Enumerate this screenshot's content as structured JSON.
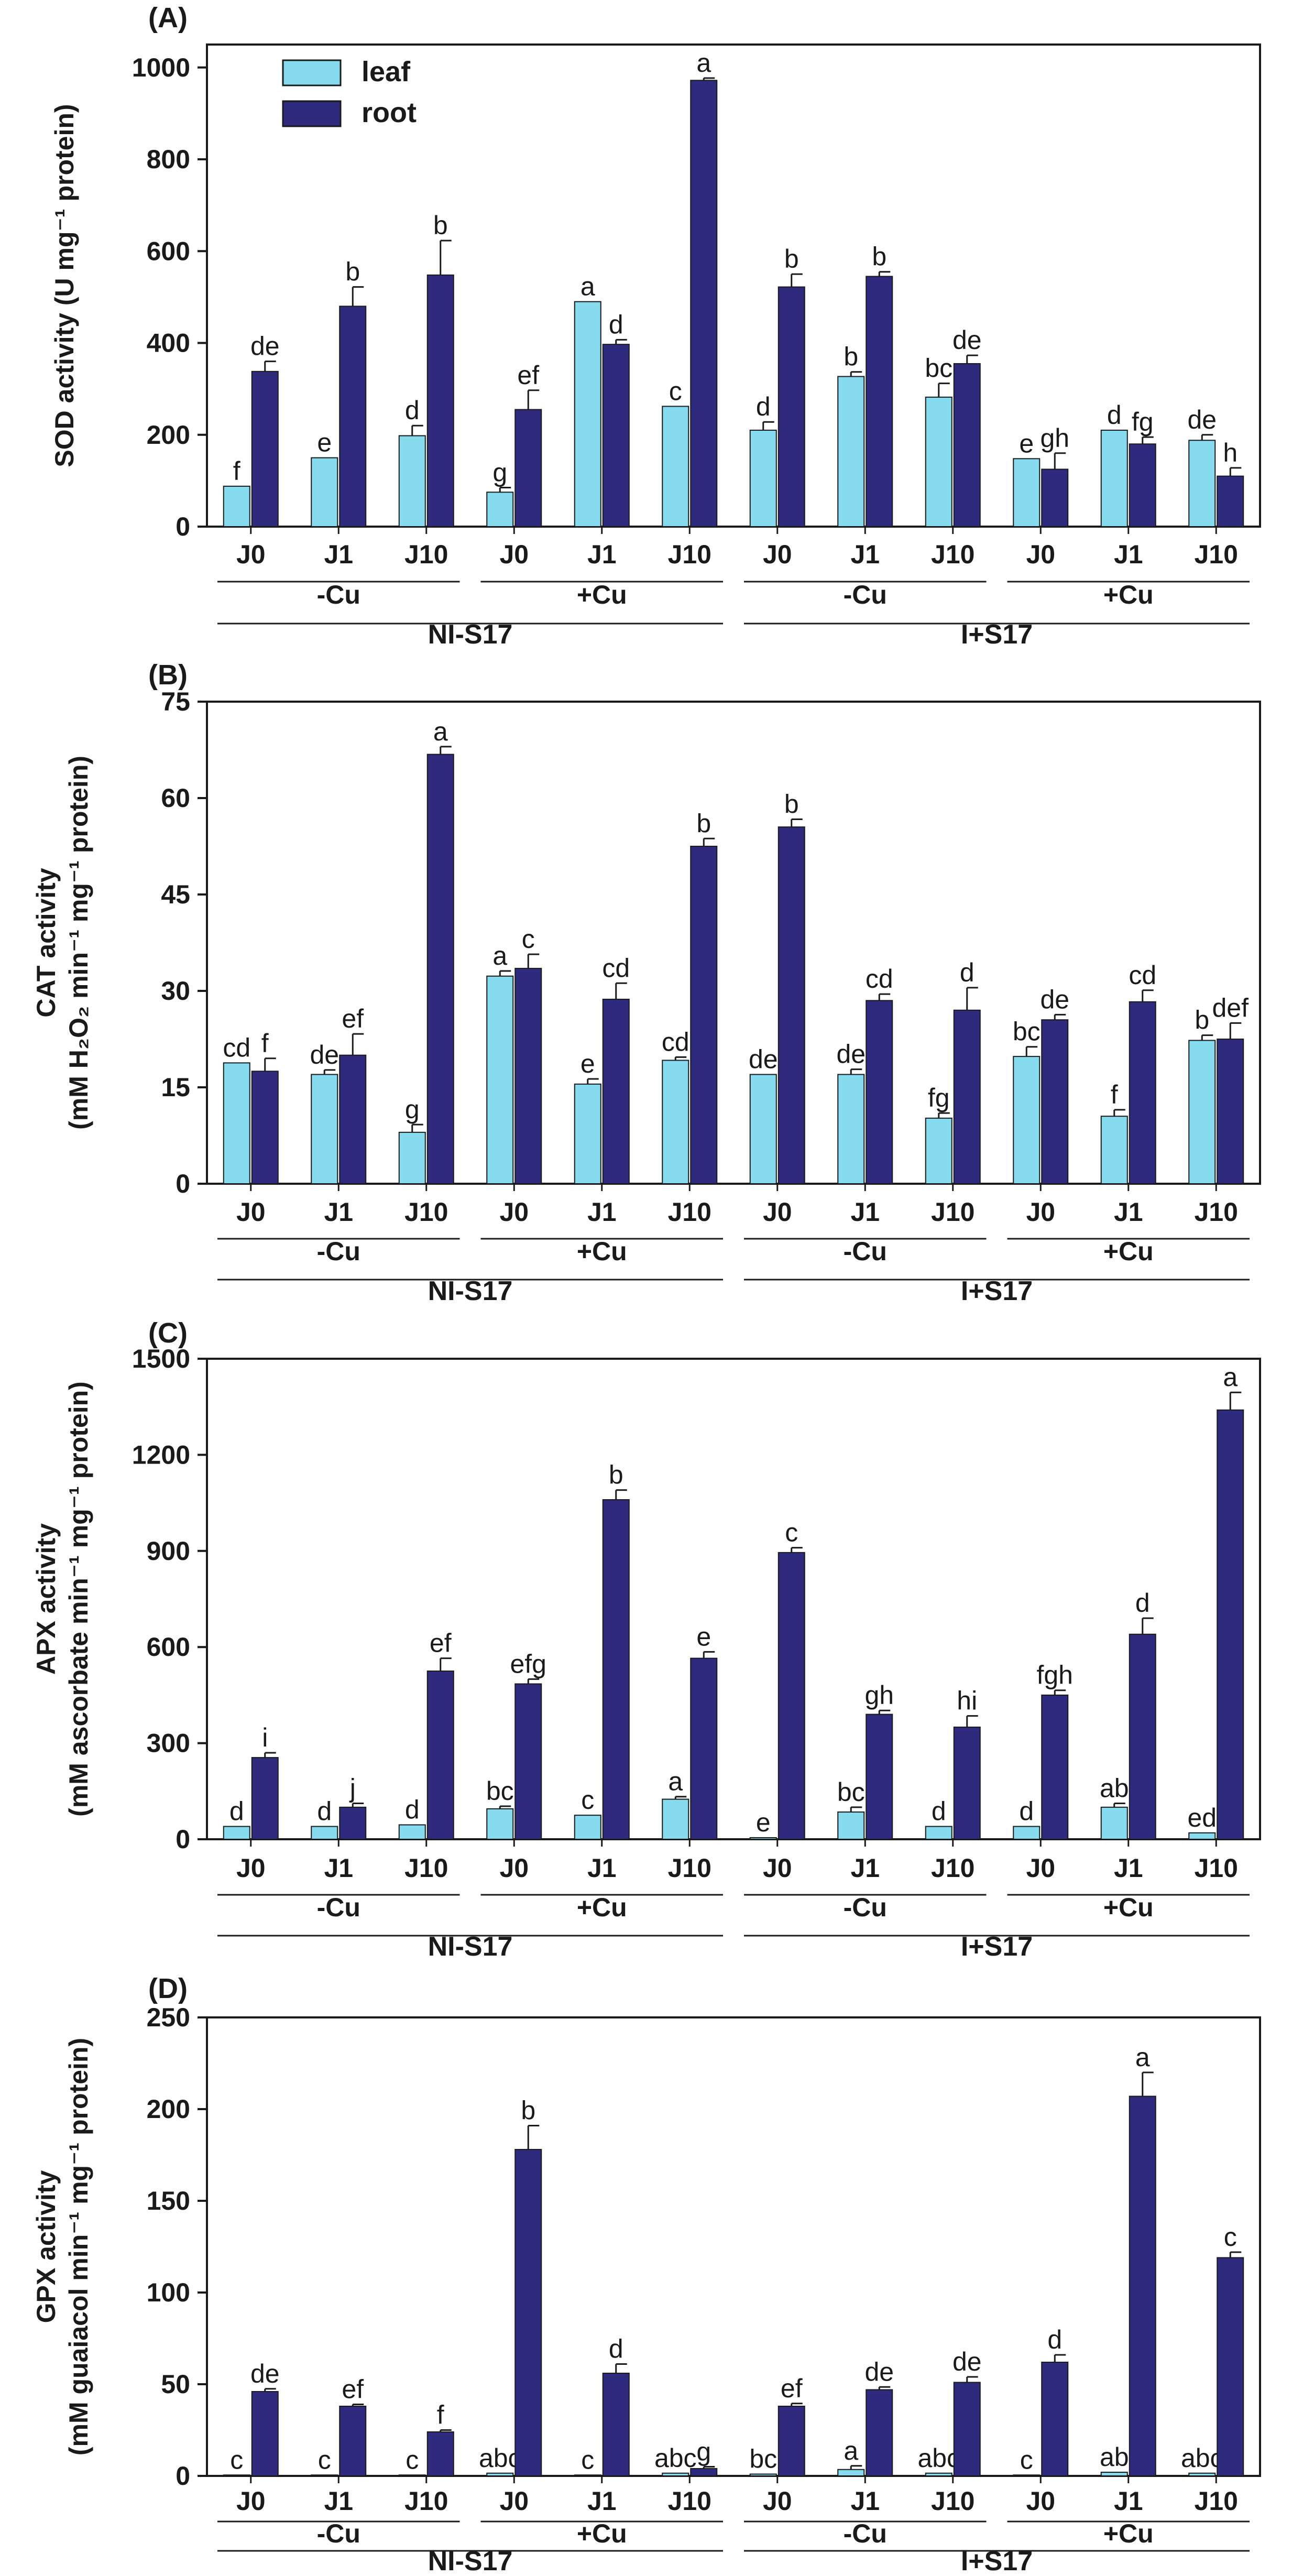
{
  "colors": {
    "leaf": "#87dbef",
    "root": "#2e2a7e",
    "axis": "#1a1a1a"
  },
  "chart_data": [
    {
      "type": "bar",
      "panel": "(A)",
      "ylabel_lines": [
        "SOD activity (U mg⁻¹ protein)"
      ],
      "ylim": [
        0,
        1050
      ],
      "yticks": [
        0,
        200,
        400,
        600,
        800,
        1000
      ],
      "legend": {
        "position": "top-left",
        "entries": [
          "leaf",
          "root"
        ]
      },
      "categories": [
        "J0",
        "J1",
        "J10",
        "J0",
        "J1",
        "J10",
        "J0",
        "J1",
        "J10",
        "J0",
        "J1",
        "J10"
      ],
      "cu_groups": [
        "-Cu",
        "+Cu",
        "-Cu",
        "+Cu"
      ],
      "groups": [
        "NI-S17",
        "I+S17"
      ],
      "series": [
        {
          "name": "leaf",
          "values": [
            88,
            150,
            198,
            75,
            490,
            262,
            210,
            327,
            282,
            148,
            210,
            188
          ],
          "errors": [
            0,
            0,
            22,
            10,
            0,
            0,
            18,
            10,
            30,
            0,
            0,
            12
          ],
          "letters": [
            "f",
            "e",
            "d",
            "g",
            "a",
            "c",
            "d",
            "b",
            "bc",
            "e",
            "d",
            "de"
          ]
        },
        {
          "name": "root",
          "values": [
            338,
            480,
            548,
            255,
            397,
            972,
            522,
            545,
            355,
            125,
            180,
            110
          ],
          "errors": [
            22,
            42,
            75,
            42,
            10,
            5,
            28,
            10,
            18,
            35,
            15,
            18
          ],
          "letters": [
            "de",
            "b",
            "b",
            "ef",
            "d",
            "a",
            "b",
            "b",
            "de",
            "gh",
            "fg",
            "h"
          ]
        }
      ]
    },
    {
      "type": "bar",
      "panel": "(B)",
      "ylabel_lines": [
        "CAT activity",
        "(mM H₂O₂ min⁻¹ mg⁻¹ protein)"
      ],
      "ylim": [
        0,
        75
      ],
      "yticks": [
        0,
        15,
        30,
        45,
        60,
        75
      ],
      "categories": [
        "J0",
        "J1",
        "J10",
        "J0",
        "J1",
        "J10",
        "J0",
        "J1",
        "J10",
        "J0",
        "J1",
        "J10"
      ],
      "cu_groups": [
        "-Cu",
        "+Cu",
        "-Cu",
        "+Cu"
      ],
      "groups": [
        "NI-S17",
        "I+S17"
      ],
      "series": [
        {
          "name": "leaf",
          "values": [
            18.8,
            17.0,
            8.0,
            32.3,
            15.5,
            19.2,
            17.0,
            17.0,
            10.2,
            19.8,
            10.5,
            22.3
          ],
          "errors": [
            0,
            0.7,
            1.2,
            0.8,
            0.8,
            0.5,
            0,
            0.8,
            0.8,
            1.5,
            1.0,
            0.8
          ],
          "letters": [
            "cd",
            "de",
            "g",
            "a",
            "e",
            "cd",
            "de",
            "de",
            "fg",
            "bc",
            "f",
            "b"
          ]
        },
        {
          "name": "root",
          "values": [
            17.5,
            20.0,
            66.8,
            33.5,
            28.7,
            52.5,
            55.5,
            28.5,
            27.0,
            25.5,
            28.3,
            22.5
          ],
          "errors": [
            2.0,
            3.3,
            1.2,
            2.2,
            2.5,
            1.2,
            1.2,
            1.0,
            3.5,
            0.8,
            1.8,
            2.5
          ],
          "letters": [
            "f",
            "ef",
            "a",
            "c",
            "cd",
            "b",
            "b",
            "cd",
            "d",
            "de",
            "cd",
            "def"
          ]
        }
      ]
    },
    {
      "type": "bar",
      "panel": "(C)",
      "ylabel_lines": [
        "APX activity",
        "(mM ascorbate min⁻¹ mg⁻¹ protein)"
      ],
      "ylim": [
        0,
        1500
      ],
      "yticks": [
        0,
        300,
        600,
        900,
        1200,
        1500
      ],
      "categories": [
        "J0",
        "J1",
        "J10",
        "J0",
        "J1",
        "J10",
        "J0",
        "J1",
        "J10",
        "J0",
        "J1",
        "J10"
      ],
      "cu_groups": [
        "-Cu",
        "+Cu",
        "-Cu",
        "+Cu"
      ],
      "groups": [
        "NI-S17",
        "I+S17"
      ],
      "series": [
        {
          "name": "leaf",
          "values": [
            40,
            40,
            45,
            95,
            75,
            125,
            5,
            85,
            40,
            40,
            100,
            20
          ],
          "errors": [
            0,
            0,
            0,
            8,
            0,
            8,
            0,
            15,
            0,
            0,
            12,
            0
          ],
          "letters": [
            "d",
            "d",
            "d",
            "bc",
            "c",
            "a",
            "e",
            "bc",
            "d",
            "d",
            "ab",
            "ed"
          ]
        },
        {
          "name": "root",
          "values": [
            255,
            100,
            525,
            485,
            1060,
            565,
            895,
            390,
            350,
            450,
            640,
            1340
          ],
          "errors": [
            15,
            12,
            40,
            15,
            30,
            20,
            15,
            12,
            35,
            15,
            50,
            55
          ],
          "letters": [
            "i",
            "j",
            "ef",
            "efg",
            "b",
            "e",
            "c",
            "gh",
            "hi",
            "fgh",
            "d",
            "a"
          ]
        }
      ]
    },
    {
      "type": "bar",
      "panel": "(D)",
      "ylabel_lines": [
        "GPX activity",
        "(mM guaiacol min⁻¹ mg⁻¹ protein)"
      ],
      "ylim": [
        0,
        250
      ],
      "yticks": [
        0,
        50,
        100,
        150,
        200,
        250
      ],
      "categories": [
        "J0",
        "J1",
        "J10",
        "J0",
        "J1",
        "J10",
        "J0",
        "J1",
        "J10",
        "J0",
        "J1",
        "J10"
      ],
      "cu_groups": [
        "-Cu",
        "+Cu",
        "-Cu",
        "+Cu"
      ],
      "groups": [
        "NI-S17",
        "I+S17"
      ],
      "series": [
        {
          "name": "leaf",
          "values": [
            0.5,
            0.5,
            0.5,
            1.5,
            0.5,
            1.5,
            1.0,
            3.5,
            1.5,
            0.5,
            2.0,
            1.5
          ],
          "errors": [
            0,
            0,
            0,
            0,
            0,
            0,
            0,
            2,
            0,
            0,
            0,
            0
          ],
          "letters": [
            "c",
            "c",
            "c",
            "abc",
            "c",
            "abc",
            "bc",
            "a",
            "abc",
            "c",
            "ab",
            "abc"
          ]
        },
        {
          "name": "root",
          "values": [
            46,
            38,
            24,
            178,
            56,
            4,
            38,
            47,
            51,
            62,
            207,
            119
          ],
          "errors": [
            1.5,
            1.0,
            1.0,
            13,
            5,
            1,
            1.5,
            1.5,
            3,
            4,
            13,
            3
          ],
          "letters": [
            "de",
            "ef",
            "f",
            "b",
            "d",
            "g",
            "ef",
            "de",
            "de",
            "d",
            "a",
            "c"
          ]
        }
      ]
    }
  ]
}
